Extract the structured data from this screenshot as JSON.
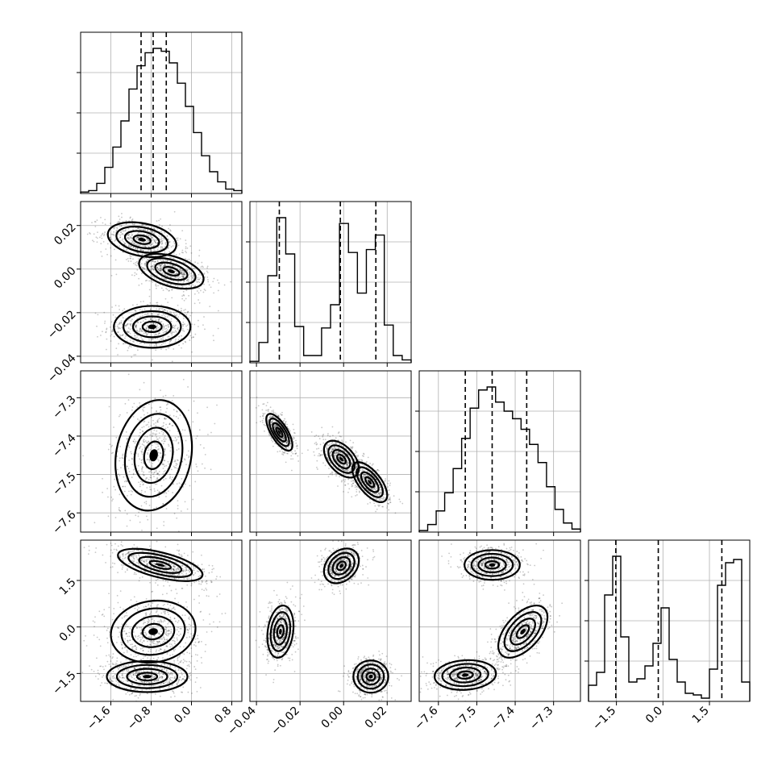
{
  "chart_data": {
    "type": "corner",
    "params": [
      {
        "range": [
          -2.2,
          1.0
        ],
        "ticks": [
          -1.6,
          -0.8,
          0.0,
          0.8
        ],
        "tick_labels": [
          "−1.6",
          "−0.8",
          "0.0",
          "0.8"
        ]
      },
      {
        "range": [
          -0.043,
          0.031
        ],
        "ticks": [
          -0.04,
          -0.02,
          0.0,
          0.02
        ],
        "tick_labels": [
          "−0.04",
          "−0.02",
          "0.00",
          "0.02"
        ]
      },
      {
        "range": [
          -7.65,
          -7.23
        ],
        "ticks": [
          -7.6,
          -7.5,
          -7.4,
          -7.3
        ],
        "tick_labels": [
          "−7.6",
          "−7.5",
          "−7.4",
          "−7.3"
        ]
      },
      {
        "range": [
          -2.4,
          2.8
        ],
        "ticks": [
          -1.5,
          0.0,
          1.5
        ],
        "tick_labels": [
          "−1.5",
          "0.0",
          "1.5"
        ]
      }
    ],
    "diagonal": [
      {
        "histogram": [
          0.01,
          0.02,
          0.07,
          0.18,
          0.32,
          0.5,
          0.72,
          0.88,
          0.97,
          1.0,
          0.98,
          0.9,
          0.76,
          0.6,
          0.42,
          0.26,
          0.15,
          0.08,
          0.03,
          0.02
        ],
        "quantiles": [
          -1.0,
          -0.76,
          -0.5
        ]
      },
      {
        "histogram": [
          0.01,
          0.14,
          0.6,
          1.0,
          0.75,
          0.25,
          0.05,
          0.05,
          0.24,
          0.4,
          0.96,
          0.76,
          0.48,
          0.78,
          0.88,
          0.26,
          0.05,
          0.02
        ],
        "quantiles": [
          -0.0295,
          -0.0015,
          0.0148
        ]
      },
      {
        "histogram": [
          0.01,
          0.05,
          0.14,
          0.26,
          0.42,
          0.62,
          0.82,
          0.94,
          0.96,
          0.86,
          0.8,
          0.75,
          0.68,
          0.58,
          0.46,
          0.3,
          0.15,
          0.06,
          0.02
        ],
        "quantiles": [
          -7.53,
          -7.46,
          -7.37
        ]
      },
      {
        "histogram": [
          0.1,
          0.18,
          0.66,
          0.9,
          0.4,
          0.12,
          0.14,
          0.22,
          0.36,
          0.58,
          0.26,
          0.12,
          0.05,
          0.04,
          0.02,
          0.2,
          0.72,
          0.86,
          0.88,
          0.12
        ],
        "quantiles": [
          -1.52,
          -0.15,
          1.9
        ]
      }
    ],
    "pairs": [
      {
        "xi": 0,
        "yi": 1,
        "clusters": [
          {
            "cx": -0.78,
            "cy": -0.0265,
            "sx": 0.38,
            "sy": 0.0048,
            "rho": 0.0
          },
          {
            "cx": -0.98,
            "cy": 0.0135,
            "sx": 0.34,
            "sy": 0.004,
            "rho": -0.3
          },
          {
            "cx": -0.4,
            "cy": -0.001,
            "sx": 0.32,
            "sy": 0.004,
            "rho": -0.45
          }
        ]
      },
      {
        "xi": 0,
        "yi": 2,
        "clusters": [
          {
            "cx": -0.75,
            "cy": -7.45,
            "sx": 0.38,
            "sy": 0.072,
            "rho": 0.15
          }
        ]
      },
      {
        "xi": 1,
        "yi": 2,
        "clusters": [
          {
            "cx": -0.0295,
            "cy": -7.39,
            "sx": 0.003,
            "sy": 0.024,
            "rho": -0.7
          },
          {
            "cx": -0.001,
            "cy": -7.46,
            "sx": 0.004,
            "sy": 0.024,
            "rho": -0.5
          },
          {
            "cx": 0.012,
            "cy": -7.52,
            "sx": 0.004,
            "sy": 0.026,
            "rho": -0.65
          }
        ]
      },
      {
        "xi": 0,
        "yi": 3,
        "clusters": [
          {
            "cx": -0.62,
            "cy": 2.0,
            "sx": 0.42,
            "sy": 0.26,
            "rho": -0.6
          },
          {
            "cx": -0.76,
            "cy": -0.15,
            "sx": 0.42,
            "sy": 0.5,
            "rho": 0.1
          },
          {
            "cx": -0.88,
            "cy": -1.6,
            "sx": 0.4,
            "sy": 0.25,
            "rho": 0.0
          }
        ]
      },
      {
        "xi": 1,
        "yi": 3,
        "clusters": [
          {
            "cx": -0.001,
            "cy": 1.97,
            "sx": 0.004,
            "sy": 0.28,
            "rho": 0.3
          },
          {
            "cx": -0.029,
            "cy": -0.15,
            "sx": 0.003,
            "sy": 0.42,
            "rho": 0.2
          },
          {
            "cx": 0.0125,
            "cy": -1.6,
            "sx": 0.004,
            "sy": 0.26,
            "rho": 0.0
          }
        ]
      },
      {
        "xi": 2,
        "yi": 3,
        "clusters": [
          {
            "cx": -7.46,
            "cy": 2.0,
            "sx": 0.036,
            "sy": 0.24,
            "rho": 0.0
          },
          {
            "cx": -7.38,
            "cy": -0.15,
            "sx": 0.032,
            "sy": 0.42,
            "rho": 0.55
          },
          {
            "cx": -7.53,
            "cy": -1.55,
            "sx": 0.04,
            "sy": 0.24,
            "rho": 0.1
          }
        ]
      }
    ]
  }
}
